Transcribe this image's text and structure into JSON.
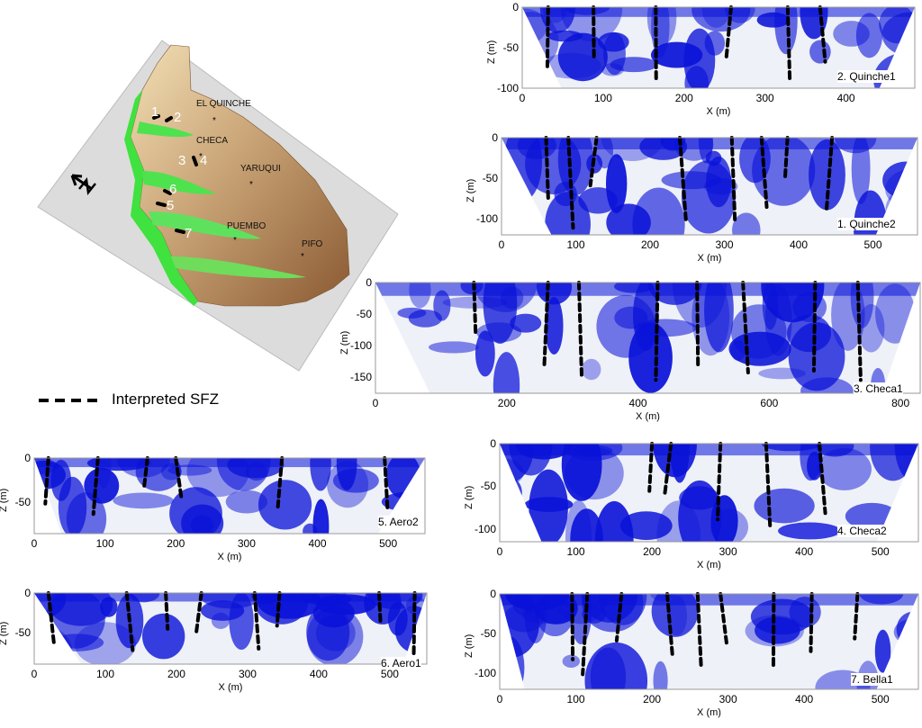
{
  "figure": {
    "map": {
      "towns": [
        "EL QUINCHE",
        "CHECA",
        "YARUQUI",
        "PUEMBO",
        "PIFO"
      ],
      "profile_numbers": [
        "1",
        "2",
        "3",
        "4",
        "6",
        "5",
        "7"
      ]
    },
    "legend": {
      "label": "Interpreted SFZ"
    },
    "panels": [
      {
        "id": "quinche1",
        "title": "2. Quinche1",
        "xlabel": "X (m)",
        "ylabel": "Z (m)",
        "xticks": [
          "0",
          "100",
          "200",
          "300",
          "400"
        ],
        "yticks": [
          "0",
          "-50",
          "-100"
        ]
      },
      {
        "id": "quinche2",
        "title": "1. Quinche2",
        "xlabel": "X (m)",
        "ylabel": "Z (m)",
        "xticks": [
          "0",
          "100",
          "200",
          "300",
          "400",
          "500"
        ],
        "yticks": [
          "0",
          "-50",
          "-100"
        ]
      },
      {
        "id": "checa1",
        "title": "3. Checa1",
        "xlabel": "X (m)",
        "ylabel": "Z (m)",
        "xticks": [
          "0",
          "200",
          "400",
          "600",
          "800"
        ],
        "yticks": [
          "0",
          "-50",
          "-100",
          "-150"
        ]
      },
      {
        "id": "aero2",
        "title": "5. Aero2",
        "xlabel": "X (m)",
        "ylabel": "Z (m)",
        "xticks": [
          "0",
          "100",
          "200",
          "300",
          "400",
          "500"
        ],
        "yticks": [
          "0",
          "-50"
        ]
      },
      {
        "id": "checa2",
        "title": "4. Checa2",
        "xlabel": "X (m)",
        "ylabel": "Z (m)",
        "xticks": [
          "0",
          "100",
          "200",
          "300",
          "400",
          "500"
        ],
        "yticks": [
          "0",
          "-50",
          "-100"
        ]
      },
      {
        "id": "aero1",
        "title": "6. Aero1",
        "xlabel": "X (m)",
        "ylabel": "Z (m)",
        "xticks": [
          "0",
          "100",
          "200",
          "300",
          "400",
          "500"
        ],
        "yticks": [
          "0",
          "-50"
        ]
      },
      {
        "id": "bella1",
        "title": "7. Bella1",
        "xlabel": "X (m)",
        "ylabel": "Z (m)",
        "xticks": [
          "0",
          "100",
          "200",
          "300",
          "400",
          "500"
        ],
        "yticks": [
          "0",
          "-50",
          "-100"
        ]
      }
    ],
    "colors": {
      "resistivity_blue": "#0a12d8",
      "low_value": "#e8ecf5",
      "fault_line": "#000000",
      "terrain_brown": "#a07a4a",
      "valley_green": "#3fe23f",
      "map_plane": "#dcdcdc"
    }
  }
}
